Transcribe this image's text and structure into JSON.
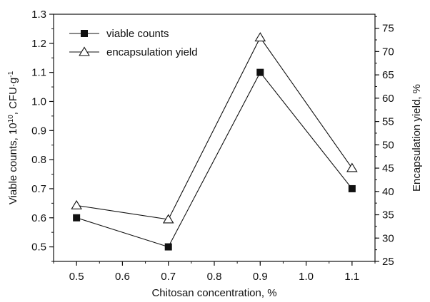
{
  "chart_data": {
    "type": "line",
    "title": "",
    "xlabel": "Chitosan concentration, %",
    "ylabel_left_main": "Viable counts, 10",
    "ylabel_left_sup": "10",
    "ylabel_left_tail": ", CFU·g",
    "ylabel_left_sup2": "-1",
    "ylabel_right": "Encapsulation yield, %",
    "x": [
      0.5,
      0.7,
      0.9,
      1.1
    ],
    "x_ticks": [
      "0.5",
      "0.6",
      "0.7",
      "0.8",
      "0.9",
      "1.0",
      "1.1"
    ],
    "xlim": [
      0.45,
      1.15
    ],
    "ylim_left": [
      0.45,
      1.3
    ],
    "y_ticks_left": [
      "0.5",
      "0.6",
      "0.7",
      "0.8",
      "0.9",
      "1.0",
      "1.1",
      "1.2",
      "1.3"
    ],
    "ylim_right": [
      25,
      78
    ],
    "y_ticks_right": [
      "25",
      "30",
      "35",
      "40",
      "45",
      "50",
      "55",
      "60",
      "65",
      "70",
      "75"
    ],
    "series": [
      {
        "name": "viable counts",
        "axis": "left",
        "marker": "square-filled",
        "values": [
          0.6,
          0.5,
          1.1,
          0.7
        ]
      },
      {
        "name": "encapsulation yield",
        "axis": "right",
        "marker": "triangle-open",
        "values": [
          37,
          34,
          73,
          45
        ]
      }
    ],
    "legend_position": "top-left",
    "grid": false
  }
}
